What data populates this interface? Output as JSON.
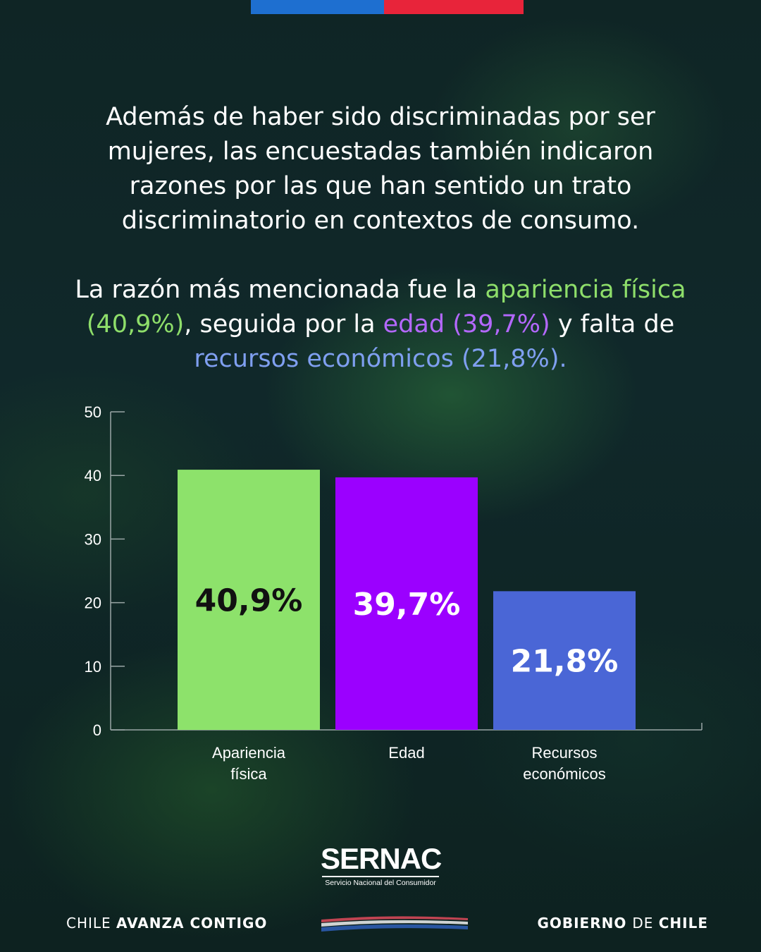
{
  "intro_text": "Además de haber sido discriminadas por ser mujeres, las encuestadas también indicaron razones por las que han sentido un trato discriminatorio en contextos de consumo.",
  "highlight": {
    "part1": "La razón más mencionada fue la ",
    "green": "apariencia física (40,9%)",
    "part2": ", seguida por la ",
    "purple": "edad (39,7%)",
    "part3": " y falta de ",
    "blue": "recursos económicos (21,8%)."
  },
  "colors": {
    "green": "#8de26b",
    "purple": "#9b00ff",
    "blue": "#4a66d6"
  },
  "chart_data": {
    "type": "bar",
    "categories": [
      [
        "Apariencia",
        "física"
      ],
      [
        "Edad"
      ],
      [
        "Recursos",
        "económicos"
      ]
    ],
    "values": [
      40.9,
      39.7,
      21.8
    ],
    "data_labels": [
      "40,9%",
      "39,7%",
      "21,8%"
    ],
    "bar_colors": [
      "#8de26b",
      "#9b00ff",
      "#4a66d6"
    ],
    "label_colors": [
      "#111111",
      "#ffffff",
      "#ffffff"
    ],
    "yticks": [
      "0",
      "10",
      "20",
      "30",
      "40",
      "50"
    ],
    "ylim": [
      0,
      50
    ],
    "grid": false
  },
  "logo": {
    "name": "SERNAC",
    "subtitle": "Servicio Nacional del Consumidor"
  },
  "footer": {
    "left_a": "CHILE ",
    "left_b": "AVANZA CONTIGO",
    "right_a": "GOBIERNO ",
    "right_b": "DE ",
    "right_c": "CHILE"
  }
}
